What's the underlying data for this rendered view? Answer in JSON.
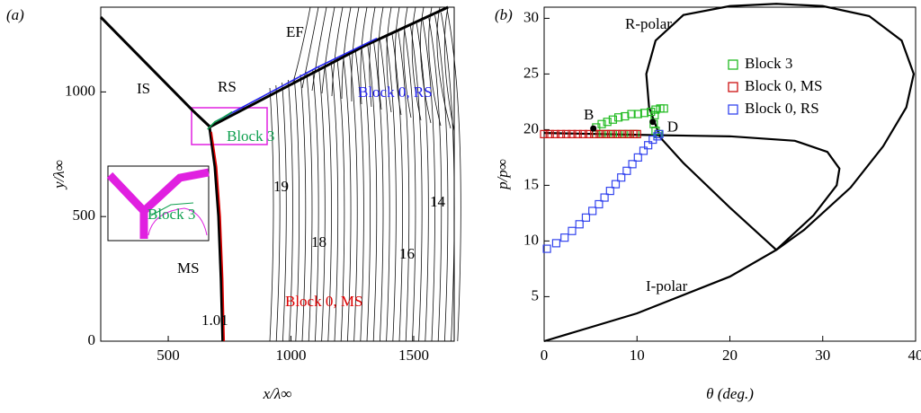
{
  "chart_data": [
    {
      "type": "line",
      "panel_label": "(a)",
      "xlabel": "x/λ∞",
      "ylabel": "y/λ∞",
      "xlim": [
        225,
        1665
      ],
      "ylim": [
        0,
        1340
      ],
      "xticks": [
        500,
        1000,
        1500
      ],
      "yticks": [
        0,
        500,
        1000
      ],
      "series": [
        {
          "color": "#000000",
          "x": [
            225,
            450,
            600,
            670
          ],
          "values": [
            1300,
            1075,
            925,
            860
          ]
        },
        {
          "color": "#000000",
          "x": [
            668,
            690,
            705,
            715,
            722
          ],
          "values": [
            860,
            700,
            500,
            250,
            0
          ]
        },
        {
          "color": "#000000",
          "x": [
            670,
            1000,
            1300,
            1640
          ],
          "values": [
            860,
            1030,
            1185,
            1340
          ]
        },
        {
          "color": "#dd0000",
          "x": [
            676,
            697,
            712,
            722,
            728
          ],
          "values": [
            840,
            700,
            500,
            250,
            0
          ]
        },
        {
          "color": "#2222ee",
          "x": [
            700,
            900,
            1100,
            1350
          ],
          "values": [
            885,
            990,
            1095,
            1215
          ]
        },
        {
          "color": "#10a050",
          "x": [
            660,
            690,
            720,
            760
          ],
          "values": [
            850,
            880,
            895,
            920
          ]
        }
      ],
      "annotations": [
        {
          "text": "IS"
        },
        {
          "text": "RS"
        },
        {
          "text": "EF"
        },
        {
          "text": "MS"
        },
        {
          "text": "Block 0, RS",
          "color": "#2222ee"
        },
        {
          "text": "Block 3",
          "color": "#10a050"
        },
        {
          "text": "Block 0, MS",
          "color": "#dd0000"
        },
        {
          "text": "19"
        },
        {
          "text": "18"
        },
        {
          "text": "16"
        },
        {
          "text": "14"
        },
        {
          "text": "1.01"
        }
      ]
    },
    {
      "type": "scatter",
      "panel_label": "(b)",
      "xlabel": "θ (deg.)",
      "ylabel": "p/p∞",
      "xlim": [
        0,
        40
      ],
      "ylim": [
        1,
        31
      ],
      "xticks": [
        0,
        10,
        20,
        30,
        40
      ],
      "yticks": [
        5,
        10,
        15,
        20,
        25,
        30
      ],
      "legend": "upper right",
      "curves": [
        {
          "name": "R-polar",
          "color": "#000000",
          "x": [
            25,
            20,
            15,
            12.5,
            11.3,
            11,
            12,
            15,
            20,
            25,
            30,
            35,
            38.5,
            39.8,
            39,
            36.5,
            33,
            28,
            25
          ],
          "values": [
            9.2,
            13,
            17,
            19.3,
            22,
            25,
            28,
            30.3,
            31.1,
            31.3,
            31.1,
            30.2,
            28,
            25,
            22,
            18.5,
            14.8,
            11,
            9.2
          ]
        },
        {
          "name": "I-polar",
          "color": "#000000",
          "x": [
            0,
            10,
            20,
            25,
            29,
            31.5,
            31.8,
            30.5,
            27,
            20,
            12.5,
            0
          ],
          "values": [
            1,
            3.5,
            6.8,
            9.2,
            12.3,
            15,
            16.5,
            18,
            19,
            19.4,
            19.5,
            19.7
          ]
        }
      ],
      "series": [
        {
          "name": "Block 3",
          "color": "#22bb22",
          "x": [
            5.6,
            6.2,
            6.8,
            7.4,
            8,
            8.6,
            9.2,
            9.8,
            5.6,
            6.2,
            6.8,
            7.4,
            8,
            8.7,
            9.4,
            10.1,
            10.8,
            11.5,
            12,
            12.5,
            12.9,
            11.9,
            11.8,
            12,
            12.3
          ],
          "values": [
            19.6,
            19.6,
            19.6,
            19.6,
            19.6,
            19.6,
            19.6,
            19.6,
            20.2,
            20.5,
            20.7,
            20.9,
            21.1,
            21.2,
            21.4,
            21.4,
            21.5,
            21.6,
            21.8,
            21.9,
            21.9,
            21.3,
            20.5,
            19.9,
            19.6
          ]
        },
        {
          "name": "Block 0, MS",
          "color": "#cc1111",
          "x": [
            0,
            0.6,
            1.2,
            1.8,
            2.4,
            3,
            3.6,
            4.2,
            4.8,
            5.4,
            6,
            6.6,
            7.2,
            7.8,
            8.4,
            9,
            9.6,
            10
          ],
          "values": [
            19.6,
            19.6,
            19.6,
            19.6,
            19.6,
            19.6,
            19.6,
            19.6,
            19.6,
            19.6,
            19.6,
            19.6,
            19.6,
            19.6,
            19.6,
            19.6,
            19.6,
            19.6
          ]
        },
        {
          "name": "Block 0, RS",
          "color": "#3344ee",
          "x": [
            0.3,
            1.3,
            2.2,
            3,
            3.8,
            4.5,
            5.2,
            5.9,
            6.5,
            7.1,
            7.7,
            8.3,
            8.9,
            9.5,
            10.1,
            10.7,
            11.2,
            11.7,
            12.2,
            12.4
          ],
          "values": [
            9.3,
            9.8,
            10.3,
            10.9,
            11.5,
            12.1,
            12.7,
            13.3,
            13.9,
            14.5,
            15.1,
            15.7,
            16.3,
            16.9,
            17.5,
            18.1,
            18.6,
            19.1,
            19.4,
            19.6
          ]
        }
      ],
      "points": [
        {
          "label": "B",
          "x": 5.3,
          "y": 20.1
        },
        {
          "label": "D",
          "x": 11.7,
          "y": 20.7
        }
      ]
    }
  ]
}
